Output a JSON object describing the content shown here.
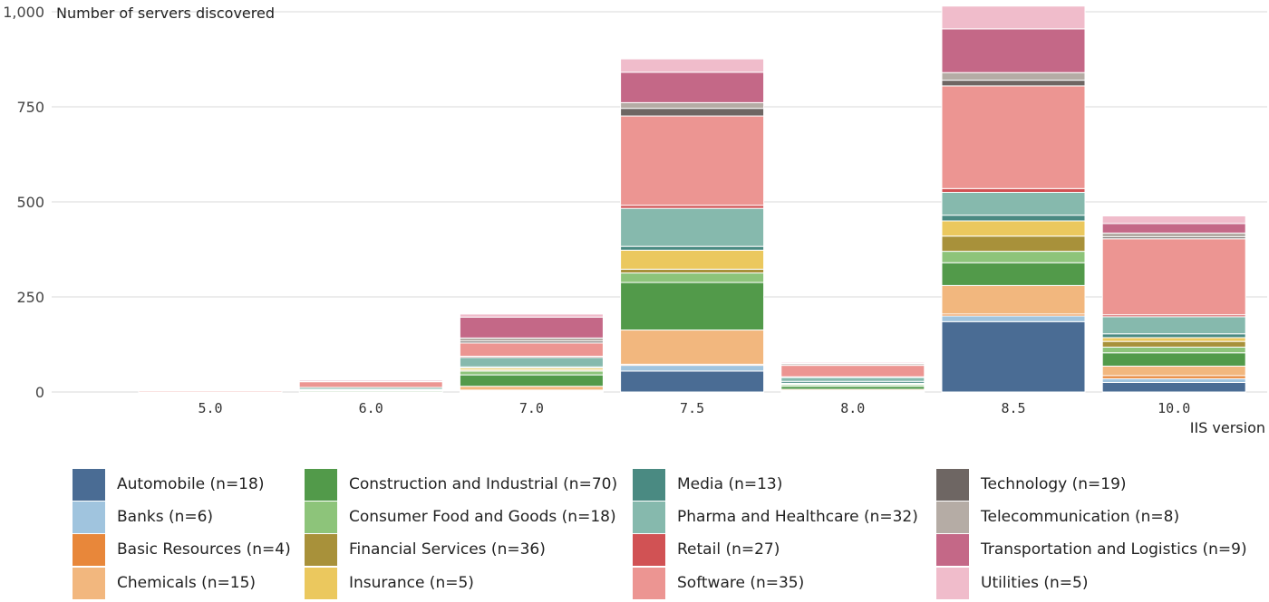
{
  "chart_data": {
    "type": "bar",
    "stacked": true,
    "ylabel": "Number of servers discovered",
    "xlabel": "IIS version",
    "ylim": [
      0,
      1000
    ],
    "yticks": [
      0,
      250,
      500,
      750,
      1000
    ],
    "ytick_labels": [
      "0",
      "250",
      "500",
      "750",
      "1,000"
    ],
    "grid": true,
    "legend_position": "bottom",
    "categories": [
      "5.0",
      "6.0",
      "7.0",
      "7.5",
      "8.0",
      "8.5",
      "10.0"
    ],
    "series": [
      {
        "name": "Automobile (n=18)",
        "color": "#4a6c94",
        "values": [
          0,
          0,
          2,
          55,
          3,
          185,
          25
        ]
      },
      {
        "name": "Banks (n=6)",
        "color": "#a0c4de",
        "values": [
          0,
          0,
          2,
          15,
          1,
          15,
          10
        ]
      },
      {
        "name": "Basic Resources (n=4)",
        "color": "#e8873a",
        "values": [
          0,
          0,
          1,
          3,
          0,
          5,
          8
        ]
      },
      {
        "name": "Chemicals (n=15)",
        "color": "#f2b77e",
        "values": [
          0,
          0,
          10,
          90,
          3,
          75,
          25
        ]
      },
      {
        "name": "Construction and Industrial (n=70)",
        "color": "#529a4a",
        "values": [
          0,
          3,
          30,
          125,
          8,
          60,
          35
        ]
      },
      {
        "name": "Consumer Food and Goods (n=18)",
        "color": "#8dc47a",
        "values": [
          0,
          2,
          10,
          25,
          4,
          30,
          15
        ]
      },
      {
        "name": "Financial Services (n=36)",
        "color": "#a8913a",
        "values": [
          0,
          0,
          3,
          10,
          2,
          40,
          15
        ]
      },
      {
        "name": "Insurance (n=5)",
        "color": "#ebc85e",
        "values": [
          0,
          1,
          5,
          50,
          2,
          40,
          10
        ]
      },
      {
        "name": "Media (n=13)",
        "color": "#4a8a82",
        "values": [
          0,
          1,
          3,
          10,
          5,
          15,
          10
        ]
      },
      {
        "name": "Pharma and Healthcare (n=32)",
        "color": "#86b9ad",
        "values": [
          0,
          5,
          25,
          100,
          10,
          60,
          45
        ]
      },
      {
        "name": "Retail (n=27)",
        "color": "#d15254",
        "values": [
          0,
          0,
          3,
          8,
          2,
          10,
          5
        ]
      },
      {
        "name": "Software (n=35)",
        "color": "#ec9592",
        "values": [
          3,
          15,
          35,
          235,
          30,
          270,
          200
        ]
      },
      {
        "name": "Technology (n=19)",
        "color": "#6e6663",
        "values": [
          0,
          0,
          5,
          20,
          0,
          15,
          5
        ]
      },
      {
        "name": "Telecommunication (n=8)",
        "color": "#b5aca5",
        "values": [
          0,
          2,
          8,
          15,
          4,
          20,
          10
        ]
      },
      {
        "name": "Transportation and Logistics (n=9)",
        "color": "#c46887",
        "values": [
          0,
          3,
          55,
          80,
          2,
          115,
          25
        ]
      },
      {
        "name": "Utilities (n=5)",
        "color": "#f0bccb",
        "values": [
          0,
          2,
          8,
          35,
          3,
          60,
          20
        ]
      }
    ]
  }
}
